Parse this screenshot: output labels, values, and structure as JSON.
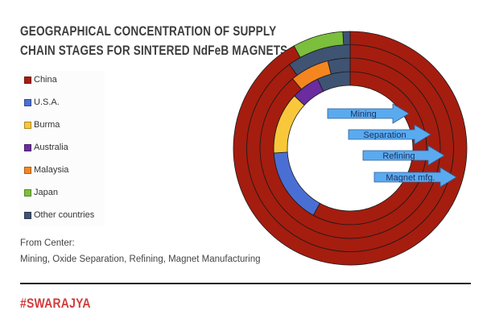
{
  "chart_data": {
    "type": "donut-rings",
    "title": "GEOGRAPHICAL CONCENTRATION OF SUPPLY CHAIN STAGES FOR SINTERED NdFeB MAGNETS",
    "title_lines": [
      "GEOGRAPHICAL CONCENTRATION OF SUPPLY",
      "CHAIN STAGES FOR SINTERED NdFeB MAGNETS"
    ],
    "legend_placement": "left",
    "categories": [
      "China",
      "U.S.A.",
      "Burma",
      "Australia",
      "Malaysia",
      "Japan",
      "Other countries"
    ],
    "colors": {
      "China": "#a51d0f",
      "U.S.A.": "#4a6fd4",
      "Burma": "#f9c83a",
      "Australia": "#6a2c9e",
      "Malaysia": "#f5861f",
      "Japan": "#7bbf3c",
      "Other countries": "#3f5373"
    },
    "rings_from_center": [
      {
        "name": "Mining",
        "arrow_label": "Mining",
        "values": {
          "China": 58,
          "U.S.A.": 16,
          "Burma": 13,
          "Australia": 6,
          "Other countries": 7
        }
      },
      {
        "name": "Separation",
        "arrow_label": "Separation",
        "values": {
          "China": 89,
          "Malaysia": 7,
          "Other countries": 4
        }
      },
      {
        "name": "Refining",
        "arrow_label": "Refining",
        "values": {
          "China": 90,
          "Other countries": 10
        }
      },
      {
        "name": "Magnet mfg.",
        "arrow_label": "Magnet mfg.",
        "values": {
          "China": 92,
          "Japan": 7,
          "Other countries": 1
        }
      }
    ]
  },
  "legend": [
    {
      "label": "China",
      "color": "#a51d0f"
    },
    {
      "label": "U.S.A.",
      "color": "#4a6fd4"
    },
    {
      "label": "Burma",
      "color": "#f9c83a"
    },
    {
      "label": "Australia",
      "color": "#6a2c9e"
    },
    {
      "label": "Malaysia",
      "color": "#f5861f"
    },
    {
      "label": "Japan",
      "color": "#7bbf3c"
    },
    {
      "label": "Other countries",
      "color": "#3f5373"
    }
  ],
  "note": {
    "line1": "From Center:",
    "line2": "Mining, Oxide Separation, Refining, Magnet Manufacturing"
  },
  "brand": "#SWARAJYA"
}
